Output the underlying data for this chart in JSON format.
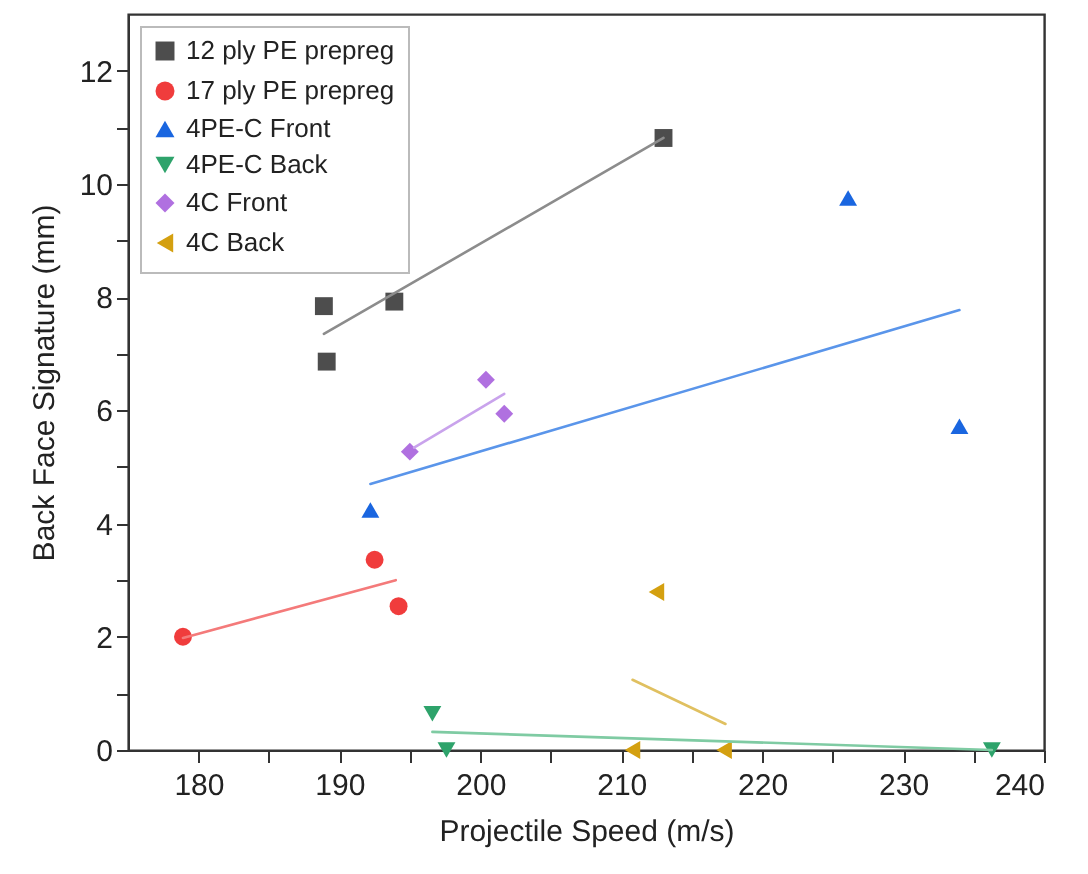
{
  "chart_data": {
    "type": "scatter",
    "xlabel": "Projectile Speed (m/s)",
    "ylabel": "Back Face Signature (mm)",
    "xlim": [
      175,
      240
    ],
    "ylim": [
      0,
      13
    ],
    "xticks": [
      180,
      {
        "value": 185,
        "label": null
      },
      190,
      {
        "value": 195,
        "label": null
      },
      200,
      {
        "value": 205,
        "label": null
      },
      210,
      {
        "value": 215,
        "label": null
      },
      220,
      {
        "value": 225,
        "label": null
      },
      230,
      {
        "value": 235,
        "label": null
      },
      240
    ],
    "yticks": [
      0,
      {
        "value": 1,
        "label": null
      },
      2,
      {
        "value": 3,
        "label": null
      },
      4,
      {
        "value": 5,
        "label": null
      },
      6,
      {
        "value": 7,
        "label": null
      },
      8,
      {
        "value": 9,
        "label": null
      },
      10,
      {
        "value": 11,
        "label": null
      },
      12
    ],
    "grid": false,
    "legend": "top left",
    "series": [
      {
        "name": "12 ply PE prepreg",
        "color": "#4d4d4d",
        "marker": "square",
        "x": [
          188.9,
          189.1,
          193.9,
          213.0
        ],
        "values": [
          7.84,
          6.86,
          7.92,
          10.81
        ]
      },
      {
        "name": "17 ply PE prepreg",
        "color": "#f03c3c",
        "marker": "circle",
        "x": [
          178.9,
          192.5,
          194.2
        ],
        "values": [
          2.0,
          3.36,
          2.54
        ]
      },
      {
        "name": "4PE-C Front",
        "color": "#1a66e0",
        "marker": "triangle",
        "x": [
          192.2,
          226.1,
          234.0
        ],
        "values": [
          4.24,
          9.75,
          5.72
        ]
      },
      {
        "name": "4PE-C Back",
        "color": "#2ea36b",
        "marker": "triangle-down",
        "x": [
          196.6,
          197.6,
          236.3
        ],
        "values": [
          0.64,
          0,
          0
        ]
      },
      {
        "name": "4C Front",
        "color": "#b070e0",
        "marker": "diamond",
        "x": [
          195.0,
          200.4,
          201.7
        ],
        "values": [
          5.27,
          6.54,
          5.94
        ]
      },
      {
        "name": "4C Back",
        "color": "#d4a010",
        "marker": "triangle-left",
        "x": [
          212.5,
          210.8,
          217.3
        ],
        "values": [
          2.79,
          0,
          0
        ]
      },
      {
        "type": "line",
        "color": "#8c8c8c",
        "x": [
          188.9,
          213.0
        ],
        "values": [
          7.35,
          10.81
        ]
      },
      {
        "type": "line",
        "color": "#f47a7a",
        "x": [
          178.9,
          194.0
        ],
        "values": [
          1.98,
          3.0
        ]
      },
      {
        "type": "line",
        "color": "#5a95ea",
        "x": [
          192.2,
          234.0
        ],
        "values": [
          4.7,
          7.77
        ]
      },
      {
        "type": "line",
        "color": "#7fcba3",
        "x": [
          196.6,
          236.3
        ],
        "values": [
          0.32,
          0
        ]
      },
      {
        "type": "line",
        "color": "#c9a3ec",
        "x": [
          195.3,
          201.7
        ],
        "values": [
          5.34,
          6.29
        ]
      },
      {
        "type": "line",
        "color": "#e0c060",
        "x": [
          210.8,
          217.4
        ],
        "values": [
          1.24,
          0.46
        ]
      }
    ]
  }
}
